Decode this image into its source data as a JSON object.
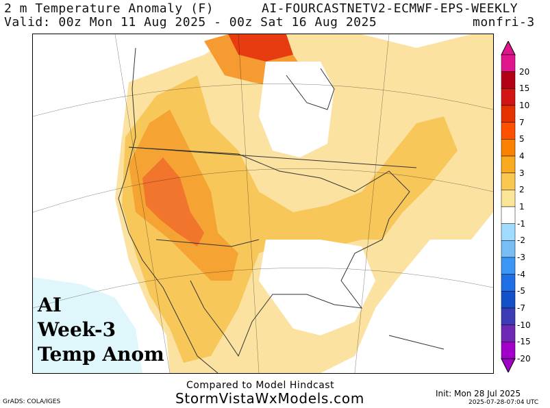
{
  "header": {
    "title": "2 m Temperature Anomaly (F)",
    "model": "AI-FOURCASTNETV2-ECMWF-EPS-WEEKLY",
    "valid": "Valid: 00z Mon 11 Aug 2025 - 00z Sat 16 Aug 2025",
    "run_tag": "monfri-3"
  },
  "overlay": {
    "line1": "AI",
    "line2": "Week-3",
    "line3": "Temp Anom"
  },
  "colorbar": {
    "labels": [
      "20",
      "15",
      "10",
      "7",
      "5",
      "4",
      "3",
      "2",
      "1",
      "-1",
      "-2",
      "-3",
      "-4",
      "-5",
      "-7",
      "-10",
      "-15",
      "-20"
    ],
    "colors": [
      "#e0148c",
      "#b40014",
      "#d21414",
      "#e63200",
      "#ff5000",
      "#fa8200",
      "#faaa1e",
      "#fac850",
      "#fae696",
      "#ffffff",
      "#a0dcff",
      "#78bef5",
      "#3c96f5",
      "#1e6ee6",
      "#1450c8",
      "#3c3cb4",
      "#6e28b4",
      "#a000c8"
    ]
  },
  "footer": {
    "compared": "Compared to Model Hindcast",
    "site": "StormVistaWxModels.com",
    "grads": "GrADS: COLA/IGES",
    "init": "Init: Mon 28 Jul 2025",
    "stamp": "2025-07-28-07:04 UTC"
  }
}
